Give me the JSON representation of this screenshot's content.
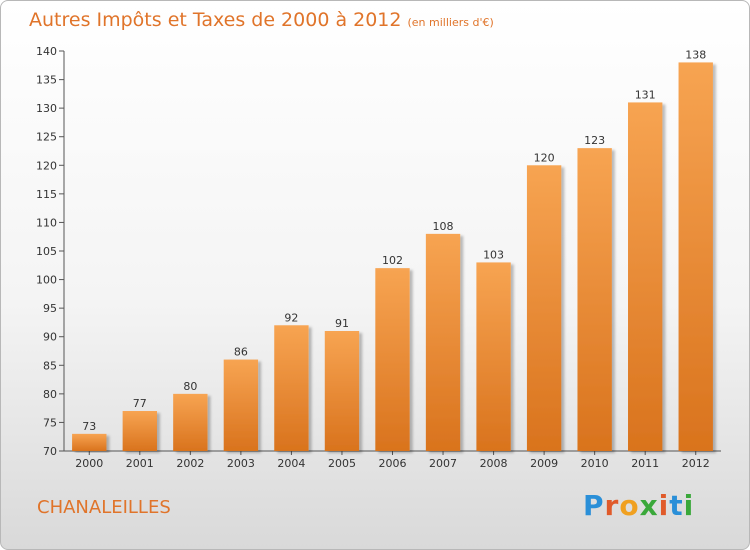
{
  "title": "Autres Impôts et Taxes de 2000 à 2012",
  "subtitle": "(en milliers d'€)",
  "commune": "CHANALEILLES",
  "brand": {
    "letters": [
      "P",
      "r",
      "o",
      "x",
      "i",
      "t",
      "i"
    ],
    "colors": [
      "#2a8fd8",
      "#e05a2a",
      "#f0a020",
      "#3aa83a",
      "#e05a2a",
      "#2a8fd8",
      "#3aa83a"
    ]
  },
  "colors": {
    "bar_top": "#f7a452",
    "bar_bottom": "#d9731d",
    "title": "#e0742a",
    "axis": "#555555"
  },
  "chart_data": {
    "type": "bar",
    "categories": [
      "2000",
      "2001",
      "2002",
      "2003",
      "2004",
      "2005",
      "2006",
      "2007",
      "2008",
      "2009",
      "2010",
      "2011",
      "2012"
    ],
    "values": [
      73,
      77,
      80,
      86,
      92,
      91,
      102,
      108,
      103,
      120,
      123,
      131,
      138
    ],
    "ylim": [
      70,
      140
    ],
    "yticks": [
      70,
      75,
      80,
      85,
      90,
      95,
      100,
      105,
      110,
      115,
      120,
      125,
      130,
      135,
      140
    ],
    "grid": false
  }
}
